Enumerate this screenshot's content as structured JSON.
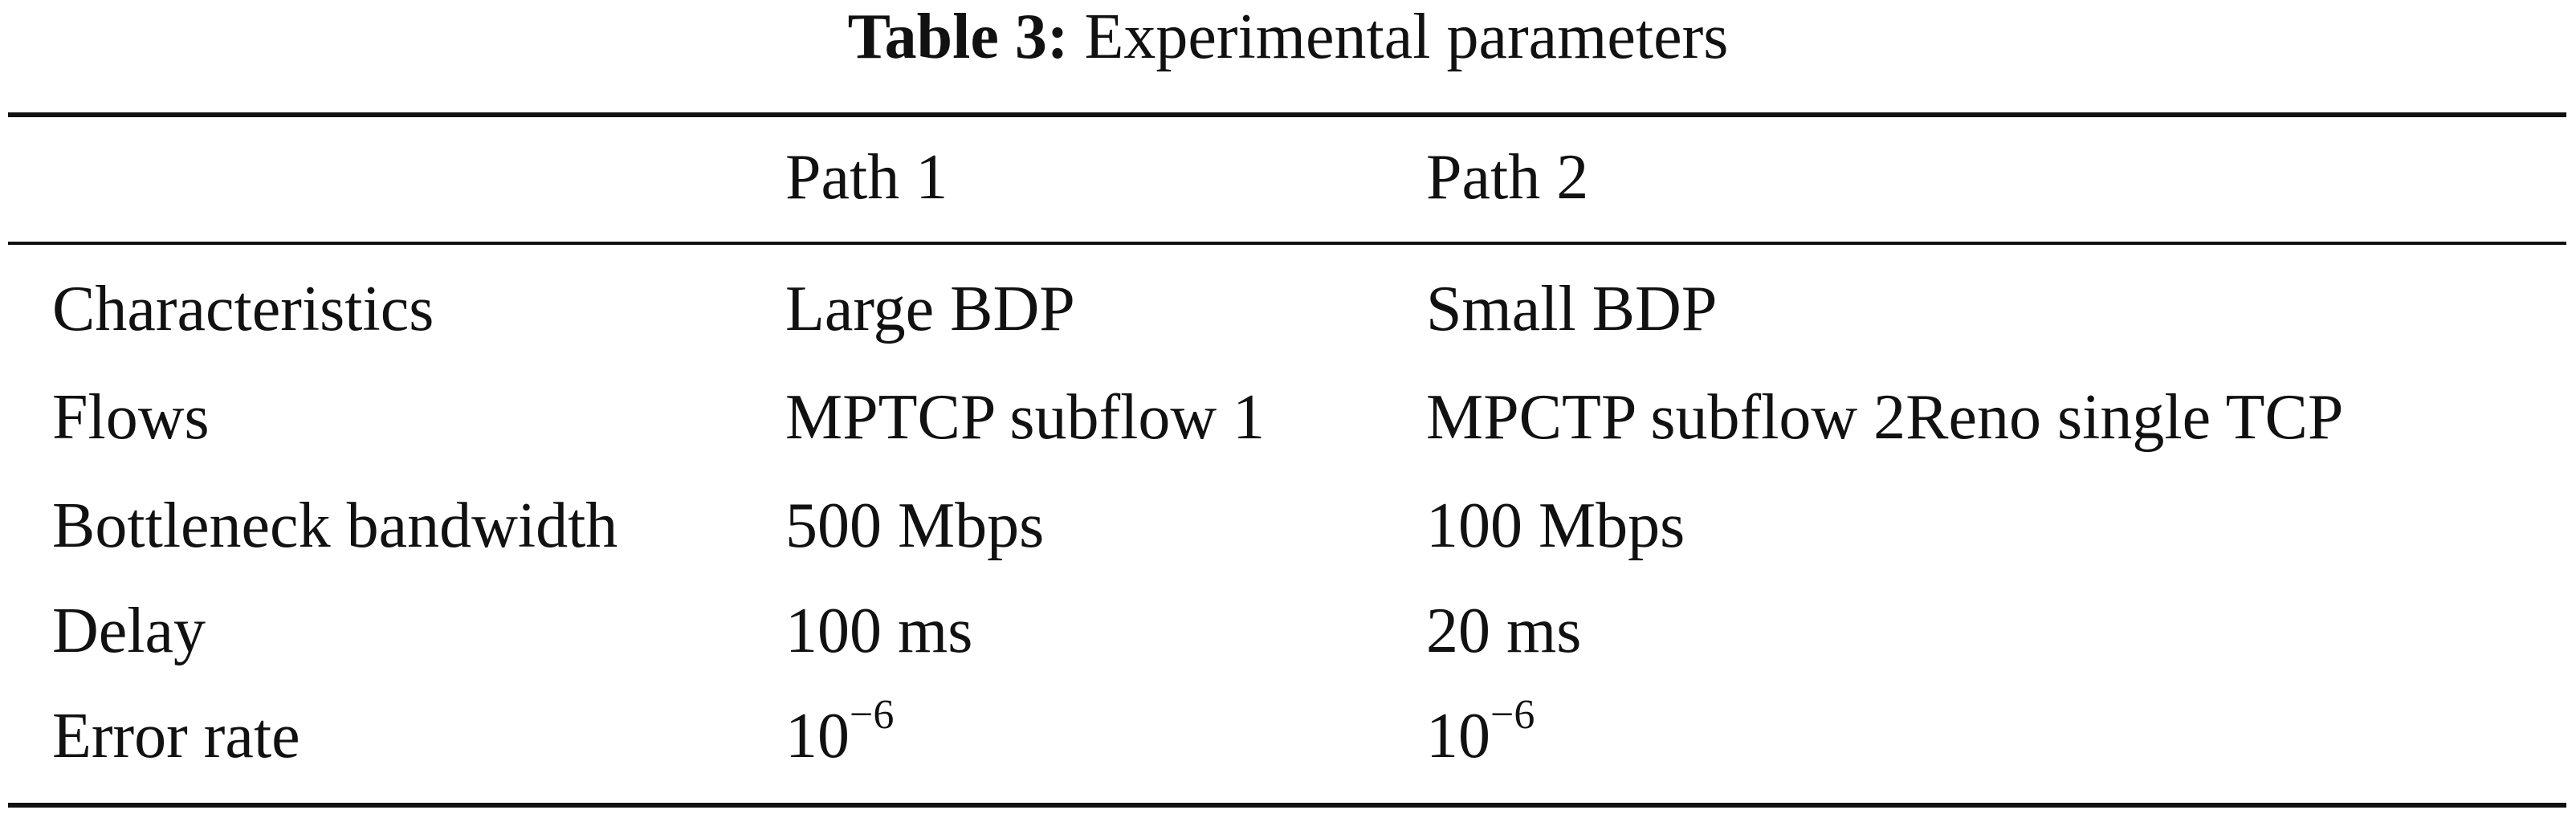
{
  "caption": {
    "label": "Table 3:",
    "text": "Experimental parameters"
  },
  "table": {
    "header": [
      "",
      "Path 1",
      "Path 2"
    ],
    "rows": [
      [
        "Characteristics",
        "Large BDP",
        "Small BDP"
      ],
      [
        "Flows",
        "MPTCP subflow 1",
        "MPCTP subflow 2Reno single TCP"
      ],
      [
        "Bottleneck bandwidth",
        "500 Mbps",
        "100 Mbps"
      ],
      [
        "Delay",
        "100 ms",
        "20 ms"
      ],
      [
        "Error rate",
        {
          "base": "10",
          "exponent": "−6"
        },
        {
          "base": "10",
          "exponent": "−6"
        }
      ]
    ]
  }
}
